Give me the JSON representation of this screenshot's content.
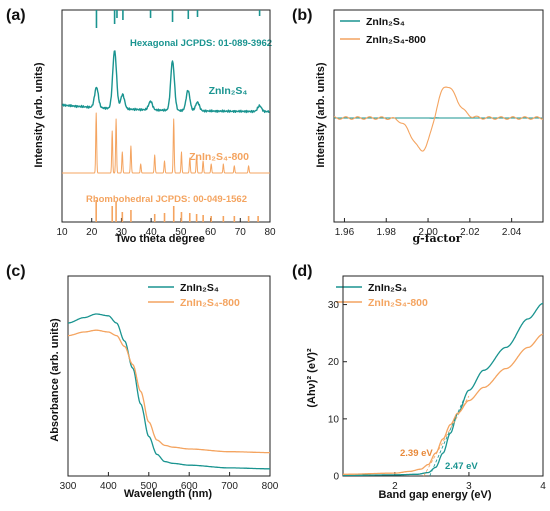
{
  "colors": {
    "teal": "#1a9490",
    "orange": "#f4a460",
    "dark": "#222222"
  },
  "chart_data": [
    {
      "panel": "(a)",
      "type": "line",
      "xlabel": "Two theta degree",
      "ylabel": "Intensity (arb. units)",
      "xlim": [
        10,
        80
      ],
      "xticks": [
        "10",
        "20",
        "30",
        "40",
        "50",
        "60",
        "70",
        "80"
      ],
      "ref_top_label": "Hexagonal  JCPDS: 01-089-3962",
      "ref_bottom_label": "Rhombohedral JCPDS: 00-049-1562",
      "series": [
        {
          "name": "ZnIn2S4",
          "label": "ZnIn₂S₄",
          "peaks": [
            [
              21.6,
              0.35
            ],
            [
              27.7,
              1.0
            ],
            [
              30.4,
              0.25
            ],
            [
              39.8,
              0.15
            ],
            [
              47.2,
              0.85
            ],
            [
              52.4,
              0.35
            ],
            [
              55.6,
              0.15
            ],
            [
              76.5,
              0.1
            ]
          ],
          "ref_peaks": [
            21.6,
            27.7,
            28.5,
            30.5,
            39.8,
            47.2,
            52.5,
            55.6,
            76.5
          ]
        },
        {
          "name": "ZnIn2S4-800",
          "label": "ZnIn₂S₄-800",
          "peaks": [
            [
              21.5,
              1.0
            ],
            [
              26.9,
              0.7
            ],
            [
              28.2,
              0.9
            ],
            [
              30.3,
              0.35
            ],
            [
              33.2,
              0.45
            ],
            [
              36.5,
              0.15
            ],
            [
              41.2,
              0.3
            ],
            [
              44.5,
              0.2
            ],
            [
              47.6,
              0.9
            ],
            [
              50.2,
              0.35
            ],
            [
              53.0,
              0.25
            ],
            [
              55.3,
              0.3
            ],
            [
              57.5,
              0.2
            ],
            [
              60.2,
              0.15
            ],
            [
              64.3,
              0.15
            ],
            [
              68.0,
              0.12
            ],
            [
              72.8,
              0.12
            ]
          ],
          "ref_peaks": [
            21.5,
            26.9,
            28.2,
            30.3,
            33.2,
            41.2,
            44.5,
            47.6,
            50.2,
            53.0,
            55.3,
            57.5,
            60.2,
            64.3,
            68.0,
            72.8,
            76.0
          ]
        }
      ]
    },
    {
      "panel": "(b)",
      "type": "line",
      "xlabel": "g-factor",
      "ylabel": "Intensity (arb. units)",
      "xlim": [
        1.955,
        2.055
      ],
      "xticks": [
        "1.96",
        "1.98",
        "2.00",
        "2.02",
        "2.04"
      ],
      "series": [
        {
          "name": "ZnIn2S4",
          "label": "ZnIn₂S₄",
          "g_center": 2.003,
          "amplitude": 0.05
        },
        {
          "name": "ZnIn2S4-800",
          "label": "ZnIn₂S₄-800",
          "g_center": 2.003,
          "g_min": 1.998,
          "g_max": 2.009,
          "amplitude": 1.0
        }
      ]
    },
    {
      "panel": "(c)",
      "type": "line",
      "xlabel": "Wavelength (nm)",
      "ylabel": "Absorbance (arb. units)",
      "xlim": [
        300,
        800
      ],
      "xticks": [
        "300",
        "400",
        "500",
        "600",
        "700",
        "800"
      ],
      "series": [
        {
          "name": "ZnIn2S4",
          "label": "ZnIn₂S₄",
          "x": [
            300,
            340,
            370,
            400,
            420,
            440,
            460,
            480,
            500,
            520,
            540,
            560,
            600,
            700,
            800
          ],
          "y": [
            0.85,
            0.88,
            0.9,
            0.89,
            0.85,
            0.75,
            0.6,
            0.4,
            0.22,
            0.12,
            0.08,
            0.07,
            0.06,
            0.045,
            0.04
          ]
        },
        {
          "name": "ZnIn2S4-800",
          "label": "ZnIn₂S₄-800",
          "x": [
            300,
            340,
            370,
            400,
            420,
            440,
            460,
            480,
            500,
            520,
            540,
            560,
            600,
            700,
            800
          ],
          "y": [
            0.78,
            0.8,
            0.81,
            0.8,
            0.78,
            0.72,
            0.62,
            0.47,
            0.3,
            0.2,
            0.17,
            0.16,
            0.15,
            0.135,
            0.13
          ]
        }
      ]
    },
    {
      "panel": "(d)",
      "type": "line",
      "xlabel": "Band gap energy (eV)",
      "ylabel": "(Ahν)² (eV)²",
      "xlim": [
        1.3,
        4
      ],
      "ylim": [
        0,
        35
      ],
      "xticks": [
        "2",
        "3",
        "4"
      ],
      "yticks": [
        "0",
        "10",
        "20",
        "30"
      ],
      "annotations": [
        {
          "text": "2.39 eV",
          "x": 2.39,
          "series": "ZnIn2S4-800"
        },
        {
          "text": "2.47 eV",
          "x": 2.47,
          "series": "ZnIn2S4"
        }
      ],
      "series": [
        {
          "name": "ZnIn2S4",
          "label": "ZnIn₂S₄",
          "x": [
            1.3,
            2.0,
            2.3,
            2.45,
            2.55,
            2.65,
            2.75,
            2.85,
            3.0,
            3.2,
            3.5,
            3.8,
            4.0
          ],
          "y": [
            0.1,
            0.2,
            0.3,
            0.6,
            1.5,
            4.0,
            7.5,
            11.0,
            15.0,
            18.5,
            22.5,
            27.5,
            30.2
          ]
        },
        {
          "name": "ZnIn2S4-800",
          "label": "ZnIn₂S₄-800",
          "x": [
            1.3,
            2.0,
            2.2,
            2.35,
            2.45,
            2.55,
            2.65,
            2.75,
            2.85,
            3.0,
            3.2,
            3.5,
            3.8,
            4.0
          ],
          "y": [
            0.3,
            0.5,
            0.8,
            1.2,
            2.0,
            4.0,
            6.5,
            9.0,
            11.0,
            13.2,
            15.5,
            18.8,
            22.5,
            24.8
          ]
        }
      ]
    }
  ]
}
